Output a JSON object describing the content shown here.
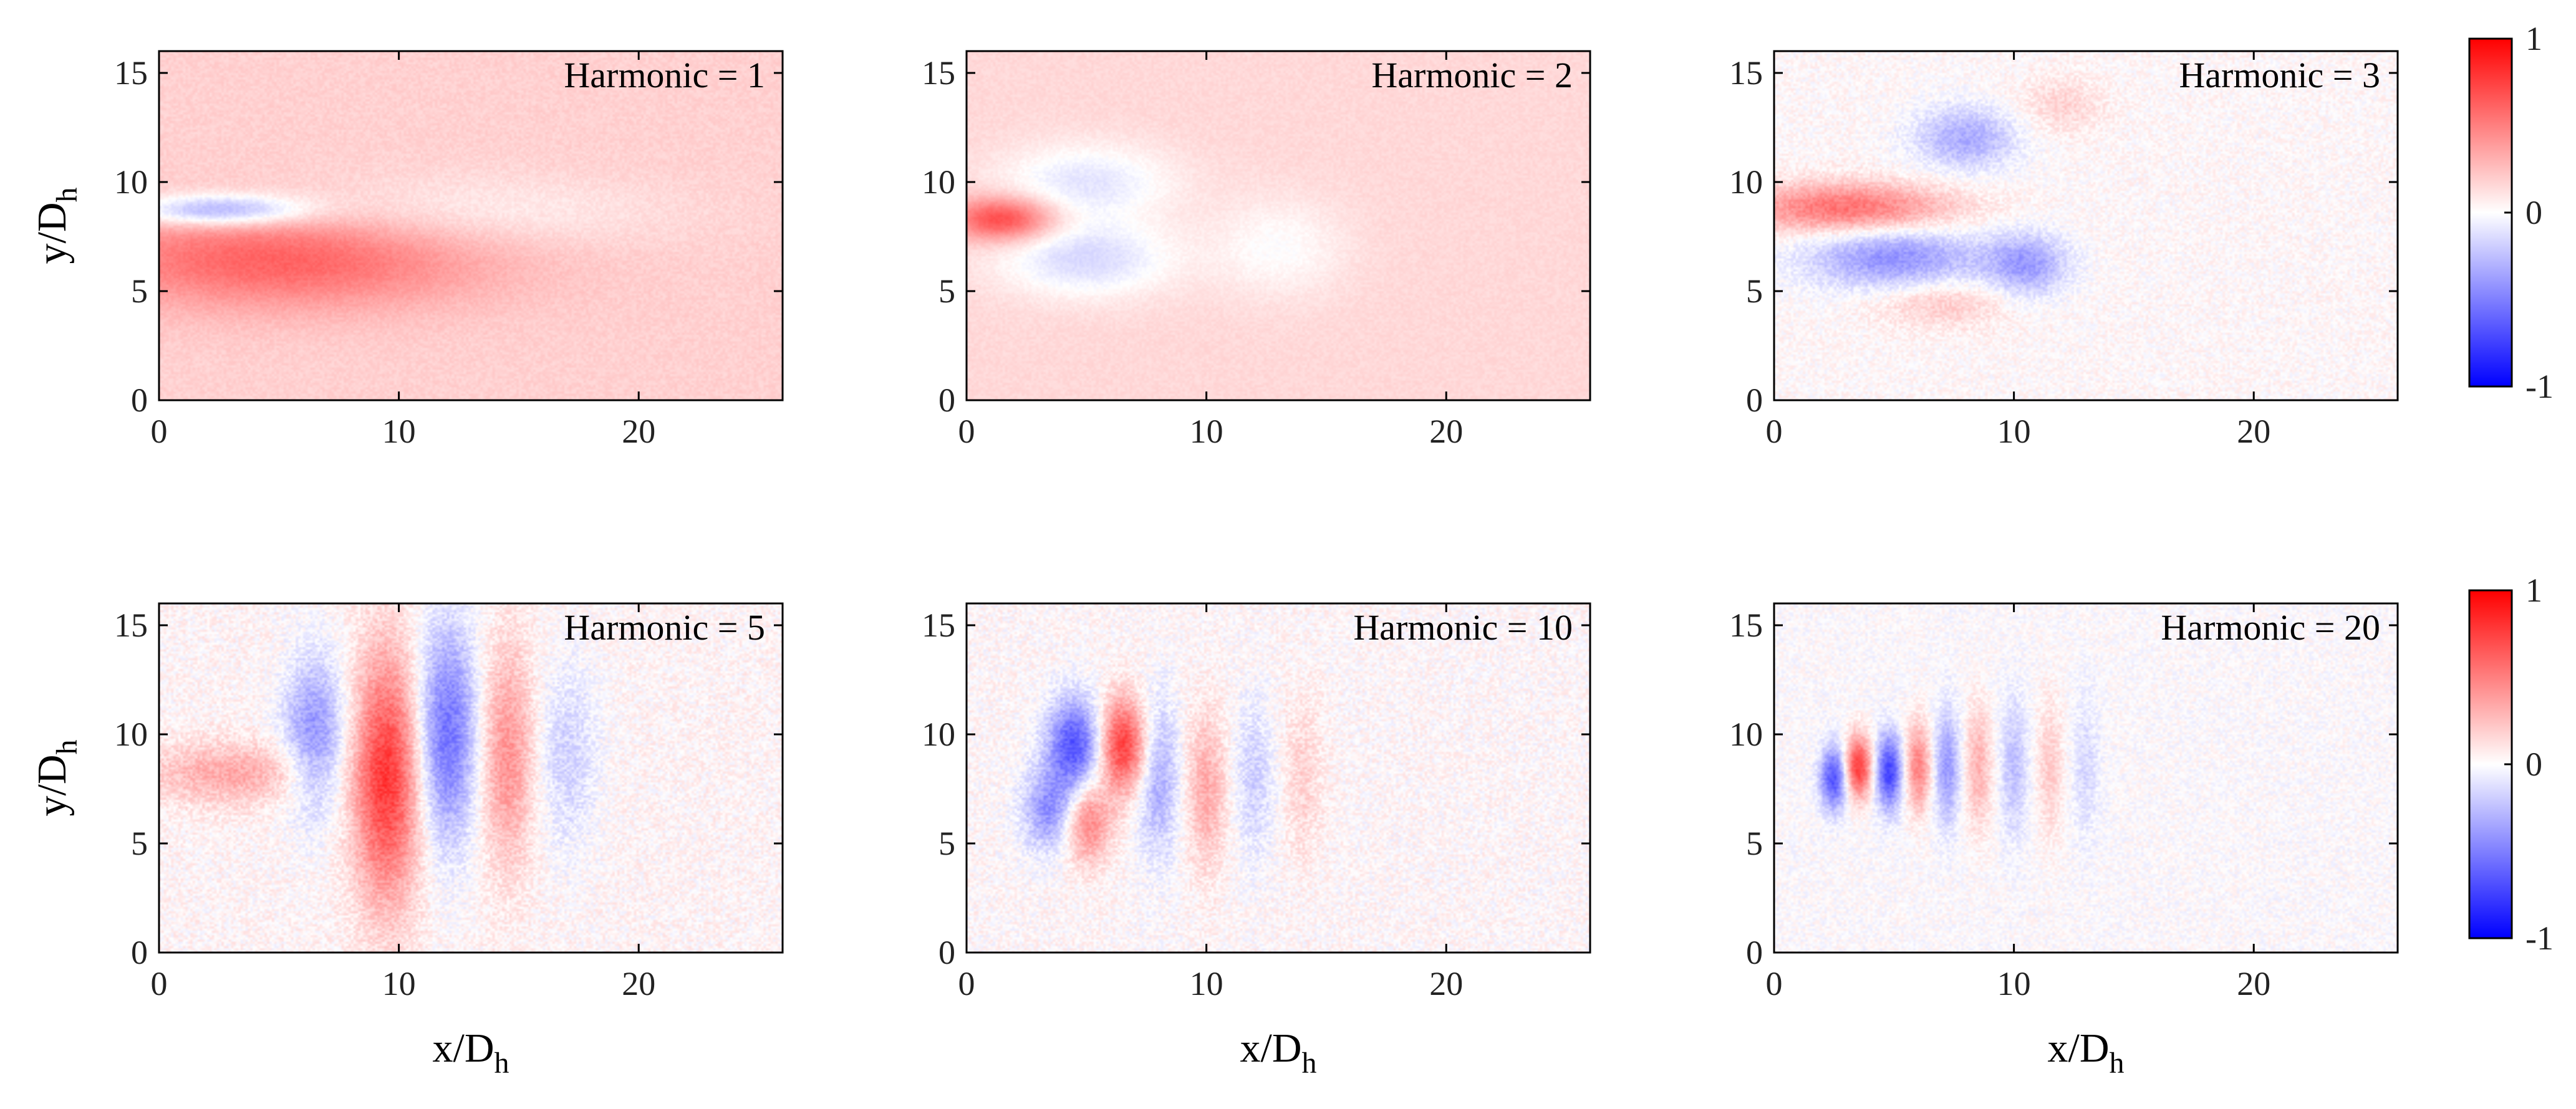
{
  "chart_data": [
    {
      "type": "heatmap",
      "annotation": "Harmonic = 1",
      "xlabel": "",
      "ylabel_main": "y/D",
      "ylabel_sub": "h",
      "xlim": [
        0,
        26
      ],
      "ylim": [
        0,
        16
      ],
      "xticks": [
        "0",
        "10",
        "20"
      ],
      "yticks": [
        "0",
        "5",
        "10",
        "15"
      ],
      "clim": [
        -1,
        1
      ],
      "field": {
        "background": 0.18,
        "jet_origin": [
          0,
          8.2
        ],
        "features": [
          {
            "x": 5,
            "y": 6.5,
            "sx": 6,
            "sy": 1.6,
            "amp": 0.45
          },
          {
            "x": 2.5,
            "y": 8.7,
            "sx": 2.5,
            "sy": 0.5,
            "amp": -0.55
          },
          {
            "x": 12,
            "y": 8.5,
            "sx": 6,
            "sy": 1.2,
            "amp": -0.15
          }
        ],
        "noise": 0.04
      }
    },
    {
      "type": "heatmap",
      "annotation": "Harmonic = 2",
      "xlabel": "",
      "ylabel_main": "",
      "ylabel_sub": "",
      "xlim": [
        0,
        26
      ],
      "ylim": [
        0,
        16
      ],
      "xticks": [
        "0",
        "10",
        "20"
      ],
      "yticks": [
        "0",
        "5",
        "10",
        "15"
      ],
      "clim": [
        -1,
        1
      ],
      "field": {
        "background": 0.15,
        "jet_origin": [
          0,
          8.2
        ],
        "features": [
          {
            "x": 1.5,
            "y": 8.3,
            "sx": 1.5,
            "sy": 0.7,
            "amp": 0.6
          },
          {
            "x": 5,
            "y": 10,
            "sx": 2.5,
            "sy": 1.2,
            "amp": -0.25
          },
          {
            "x": 5,
            "y": 6.5,
            "sx": 2.5,
            "sy": 1.2,
            "amp": -0.3
          },
          {
            "x": 13,
            "y": 7,
            "sx": 2,
            "sy": 1.6,
            "amp": -0.15
          }
        ],
        "noise": 0.03
      }
    },
    {
      "type": "heatmap",
      "annotation": "Harmonic = 3",
      "xlabel": "",
      "ylabel_main": "",
      "ylabel_sub": "",
      "xlim": [
        0,
        26
      ],
      "ylim": [
        0,
        16
      ],
      "xticks": [
        "0",
        "10",
        "20"
      ],
      "yticks": [
        "0",
        "5",
        "10",
        "15"
      ],
      "clim": [
        -1,
        1
      ],
      "field": {
        "background": 0.02,
        "jet_origin": [
          0,
          8.2
        ],
        "features": [
          {
            "x": 3,
            "y": 8.8,
            "sx": 3,
            "sy": 0.8,
            "amp": 0.55
          },
          {
            "x": 5,
            "y": 6.5,
            "sx": 2.5,
            "sy": 1.0,
            "amp": -0.45
          },
          {
            "x": 10.5,
            "y": 6.2,
            "sx": 1.2,
            "sy": 1.0,
            "amp": -0.4
          },
          {
            "x": 8,
            "y": 12,
            "sx": 1.5,
            "sy": 1.0,
            "amp": -0.35
          },
          {
            "x": 7,
            "y": 4.5,
            "sx": 2,
            "sy": 0.8,
            "amp": 0.2
          },
          {
            "x": 12,
            "y": 13.5,
            "sx": 1.2,
            "sy": 0.9,
            "amp": 0.15
          }
        ],
        "noise": 0.08
      }
    },
    {
      "type": "heatmap",
      "annotation": "Harmonic = 5",
      "xlabel": "x/D",
      "xlabel_sub": "h",
      "ylabel_main": "y/D",
      "ylabel_sub": "h",
      "xlim": [
        0,
        26
      ],
      "ylim": [
        0,
        16
      ],
      "xticks": [
        "0",
        "10",
        "20"
      ],
      "yticks": [
        "0",
        "5",
        "10",
        "15"
      ],
      "clim": [
        -1,
        1
      ],
      "field": {
        "background": 0.03,
        "jet_origin": [
          0,
          8.2
        ],
        "bands": [
          {
            "x": 6.5,
            "y": 10,
            "sx": 0.9,
            "sy": 2.5,
            "amp": -0.45
          },
          {
            "x": 9.5,
            "y": 8,
            "sx": 1.0,
            "sy": 4.0,
            "amp": 0.75
          },
          {
            "x": 12,
            "y": 10,
            "sx": 0.9,
            "sy": 3.5,
            "amp": -0.6
          },
          {
            "x": 14.5,
            "y": 9,
            "sx": 0.8,
            "sy": 3.5,
            "amp": 0.4
          },
          {
            "x": 17,
            "y": 9,
            "sx": 0.9,
            "sy": 3.0,
            "amp": -0.2
          },
          {
            "x": 3,
            "y": 8.2,
            "sx": 2.5,
            "sy": 1.0,
            "amp": 0.3
          }
        ],
        "noise": 0.1
      }
    },
    {
      "type": "heatmap",
      "annotation": "Harmonic = 10",
      "xlabel": "x/D",
      "xlabel_sub": "h",
      "ylabel_main": "",
      "ylabel_sub": "",
      "xlim": [
        0,
        26
      ],
      "ylim": [
        0,
        16
      ],
      "xticks": [
        "0",
        "10",
        "20"
      ],
      "yticks": [
        "0",
        "5",
        "10",
        "15"
      ],
      "clim": [
        -1,
        1
      ],
      "field": {
        "background": 0.02,
        "jet_origin": [
          0,
          8.2
        ],
        "bands": [
          {
            "x": 4.5,
            "y": 9.5,
            "sx": 0.8,
            "sy": 1.5,
            "amp": -0.7
          },
          {
            "x": 6.5,
            "y": 9.5,
            "sx": 0.7,
            "sy": 1.5,
            "amp": 0.75
          },
          {
            "x": 3.5,
            "y": 6.5,
            "sx": 0.8,
            "sy": 1.3,
            "amp": -0.45
          },
          {
            "x": 5,
            "y": 6,
            "sx": 0.7,
            "sy": 1.3,
            "amp": 0.5
          },
          {
            "x": 8,
            "y": 8,
            "sx": 0.6,
            "sy": 2.5,
            "amp": -0.35
          },
          {
            "x": 10,
            "y": 7.5,
            "sx": 0.6,
            "sy": 2.5,
            "amp": 0.3
          },
          {
            "x": 12,
            "y": 8,
            "sx": 0.6,
            "sy": 2.5,
            "amp": -0.2
          },
          {
            "x": 14,
            "y": 8,
            "sx": 0.6,
            "sy": 2.5,
            "amp": 0.15
          }
        ],
        "noise": 0.1
      }
    },
    {
      "type": "heatmap",
      "annotation": "Harmonic = 20",
      "xlabel": "x/D",
      "xlabel_sub": "h",
      "ylabel_main": "",
      "ylabel_sub": "",
      "xlim": [
        0,
        26
      ],
      "ylim": [
        0,
        16
      ],
      "xticks": [
        "0",
        "10",
        "20"
      ],
      "yticks": [
        "0",
        "5",
        "10",
        "15"
      ],
      "clim": [
        -1,
        1
      ],
      "field": {
        "background": 0.0,
        "jet_origin": [
          0,
          8.2
        ],
        "bands": [
          {
            "x": 3.5,
            "y": 8.5,
            "sx": 0.4,
            "sy": 1.0,
            "amp": 0.8
          },
          {
            "x": 2.5,
            "y": 8.0,
            "sx": 0.4,
            "sy": 1.0,
            "amp": -0.7
          },
          {
            "x": 4.8,
            "y": 8.3,
            "sx": 0.4,
            "sy": 1.2,
            "amp": -0.75
          },
          {
            "x": 6,
            "y": 8.5,
            "sx": 0.4,
            "sy": 1.4,
            "amp": 0.5
          },
          {
            "x": 7.2,
            "y": 8.5,
            "sx": 0.4,
            "sy": 1.8,
            "amp": -0.4
          },
          {
            "x": 8.5,
            "y": 8.5,
            "sx": 0.4,
            "sy": 2.0,
            "amp": 0.3
          },
          {
            "x": 10,
            "y": 8.5,
            "sx": 0.4,
            "sy": 2.2,
            "amp": -0.25
          },
          {
            "x": 11.5,
            "y": 8.5,
            "sx": 0.4,
            "sy": 2.2,
            "amp": 0.2
          },
          {
            "x": 13,
            "y": 8.5,
            "sx": 0.4,
            "sy": 2.2,
            "amp": -0.15
          }
        ],
        "noise": 0.08
      }
    }
  ],
  "colorbars": [
    {
      "ticks": [
        "1",
        "0",
        "-1"
      ]
    },
    {
      "ticks": [
        "1",
        "0",
        "-1"
      ]
    }
  ],
  "colors": {
    "positive": "#ff0000",
    "neutral": "#ffffff",
    "negative": "#0000ff"
  }
}
